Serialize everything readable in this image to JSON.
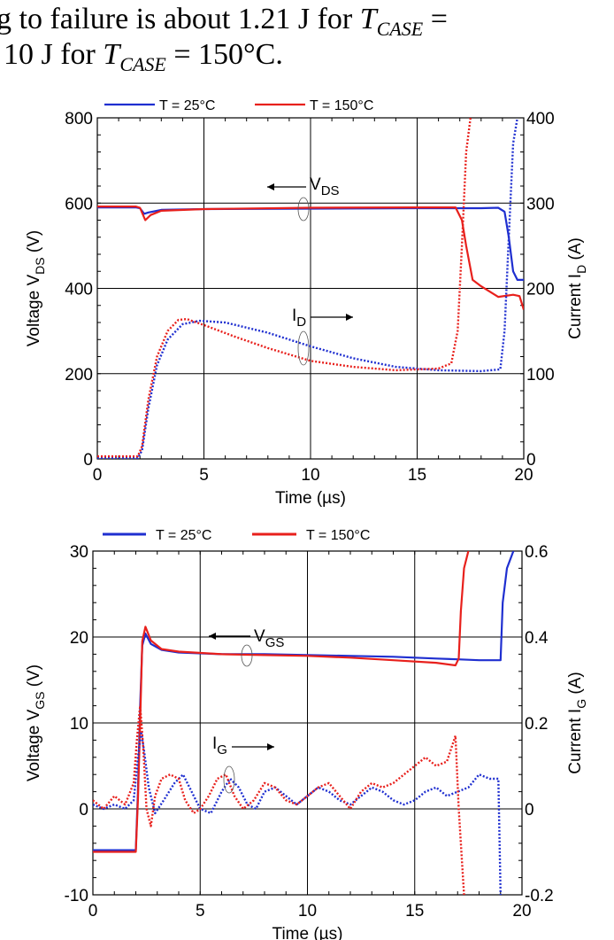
{
  "caption": {
    "line1": "g to failure is about 1.21 J for T_CASE =",
    "line2": "10 J for T_CASE = 150°C."
  },
  "colors": {
    "series_25": "#1f2fd0",
    "series_150": "#e8201c"
  },
  "chart_data": [
    {
      "type": "line",
      "legend": [
        {
          "name": "T = 25°C",
          "color": "#1f2fd0"
        },
        {
          "name": "T = 150°C",
          "color": "#e8201c"
        }
      ],
      "xlabel": "Time  (µs)",
      "xlim": [
        0,
        20
      ],
      "xticks": [
        "0",
        "5",
        "10",
        "15",
        "20"
      ],
      "ylabel_left": "Voltage  V_DS (V)",
      "ylim_left": [
        0,
        800
      ],
      "yticks_left": [
        "0",
        "200",
        "400",
        "600",
        "800"
      ],
      "ylabel_right": "Current  I_D (A)",
      "ylim_right": [
        0,
        400
      ],
      "yticks_right": [
        "0",
        "100",
        "200",
        "300",
        "400"
      ],
      "grid": true,
      "annotations": [
        {
          "text": "V_DS",
          "arrow": "left"
        },
        {
          "text": "I_D",
          "arrow": "right"
        }
      ],
      "series": [
        {
          "name": "V_DS 25°C",
          "axis": "left",
          "style": "solid",
          "color": "#1f2fd0",
          "x": [
            0,
            1.8,
            2.0,
            2.2,
            2.4,
            3.0,
            5.0,
            10.0,
            15.0,
            17.0,
            18.0,
            18.8,
            19.1,
            19.3,
            19.5,
            19.7,
            20.0
          ],
          "y": [
            590,
            590,
            588,
            575,
            578,
            584,
            586,
            587,
            588,
            588,
            588,
            589,
            580,
            520,
            440,
            420,
            420
          ]
        },
        {
          "name": "V_DS 150°C",
          "axis": "left",
          "style": "solid",
          "color": "#e8201c",
          "x": [
            0,
            1.8,
            2.0,
            2.25,
            2.5,
            3.0,
            5.0,
            10.0,
            15.0,
            16.8,
            17.1,
            17.3,
            17.6,
            18.0,
            18.8,
            19.5,
            19.8,
            20.0
          ],
          "y": [
            592,
            592,
            589,
            560,
            572,
            582,
            586,
            589,
            590,
            590,
            560,
            500,
            420,
            405,
            380,
            385,
            382,
            350
          ]
        },
        {
          "name": "I_D 25°C",
          "axis": "right",
          "style": "dotted",
          "color": "#1f2fd0",
          "x": [
            0,
            1.9,
            2.1,
            2.4,
            2.8,
            3.3,
            4.0,
            4.8,
            6.0,
            8.0,
            10.0,
            12.0,
            14.0,
            16.0,
            18.0,
            18.9,
            19.1,
            19.3,
            19.5,
            19.7
          ],
          "y": [
            1,
            1,
            10,
            60,
            110,
            140,
            158,
            162,
            160,
            148,
            132,
            118,
            108,
            104,
            103,
            105,
            150,
            260,
            370,
            400
          ]
        },
        {
          "name": "I_D 150°C",
          "axis": "right",
          "style": "dotted",
          "color": "#e8201c",
          "x": [
            0,
            1.9,
            2.1,
            2.4,
            2.8,
            3.3,
            3.8,
            4.2,
            5.0,
            6.5,
            8.0,
            10.0,
            12.0,
            14.0,
            16.0,
            16.6,
            16.9,
            17.1,
            17.3,
            17.5
          ],
          "y": [
            3,
            3,
            15,
            70,
            120,
            150,
            163,
            164,
            157,
            143,
            130,
            115,
            108,
            104,
            106,
            112,
            150,
            250,
            360,
            400
          ]
        }
      ]
    },
    {
      "type": "line",
      "legend": [
        {
          "name": "T = 25°C",
          "color": "#1f2fd0"
        },
        {
          "name": "T = 150°C",
          "color": "#e8201c"
        }
      ],
      "xlabel": "Time  (µs)",
      "xlim": [
        0,
        20
      ],
      "xticks": [
        "0",
        "5",
        "10",
        "15",
        "20"
      ],
      "ylabel_left": "Voltage  V_GS (V)",
      "ylim_left": [
        -10,
        30
      ],
      "yticks_left": [
        "-10",
        "0",
        "10",
        "20",
        "30"
      ],
      "ylabel_right": "Current  I_G (A)",
      "ylim_right": [
        -0.2,
        0.6
      ],
      "yticks_right": [
        "-0.2",
        "0",
        "0.2",
        "0.4",
        "0.6"
      ],
      "grid": true,
      "annotations": [
        {
          "text": "V_GS",
          "arrow": "left"
        },
        {
          "text": "I_G",
          "arrow": "right"
        }
      ],
      "series": [
        {
          "name": "V_GS 25°C",
          "axis": "left",
          "style": "solid",
          "color": "#1f2fd0",
          "x": [
            0,
            2.0,
            2.1,
            2.2,
            2.3,
            2.45,
            2.7,
            3.2,
            4.0,
            6.0,
            8.0,
            10.0,
            12.0,
            14.0,
            16.0,
            17.0,
            18.0,
            18.9,
            19.0,
            19.1,
            19.3,
            19.6
          ],
          "y": [
            -4.8,
            -4.8,
            2.0,
            12.0,
            19.0,
            20.4,
            19.2,
            18.5,
            18.2,
            18.0,
            18.0,
            17.9,
            17.8,
            17.7,
            17.5,
            17.4,
            17.3,
            17.3,
            17.3,
            24.0,
            28.0,
            30.0
          ]
        },
        {
          "name": "V_GS 150°C",
          "axis": "left",
          "style": "solid",
          "color": "#e8201c",
          "x": [
            0,
            2.0,
            2.1,
            2.2,
            2.3,
            2.45,
            2.7,
            3.2,
            4.0,
            6.0,
            8.0,
            10.0,
            12.0,
            14.0,
            16.0,
            16.9,
            17.05,
            17.15,
            17.3,
            17.5
          ],
          "y": [
            -5.0,
            -5.0,
            1.0,
            10.0,
            19.5,
            21.2,
            19.6,
            18.6,
            18.3,
            18.0,
            17.9,
            17.8,
            17.6,
            17.3,
            17.0,
            16.7,
            17.5,
            23.0,
            28.0,
            30.0
          ]
        },
        {
          "name": "I_G 25°C",
          "axis": "right",
          "style": "dotted",
          "color": "#1f2fd0",
          "x": [
            0,
            0.5,
            1.0,
            1.5,
            1.9,
            2.1,
            2.25,
            2.4,
            2.6,
            2.9,
            3.3,
            3.8,
            4.2,
            4.6,
            5.0,
            5.5,
            6.0,
            6.4,
            6.8,
            7.2,
            7.6,
            8.0,
            8.5,
            9.0,
            9.5,
            10.0,
            10.5,
            11.0,
            11.5,
            12.0,
            12.5,
            13.0,
            13.5,
            14.0,
            14.5,
            15.0,
            15.5,
            16.0,
            16.5,
            17.0,
            17.5,
            18.0,
            18.5,
            18.9,
            19.0
          ],
          "y": [
            0.01,
            0.0,
            0.01,
            0.0,
            0.02,
            0.12,
            0.18,
            0.13,
            0.05,
            -0.01,
            0.02,
            0.06,
            0.08,
            0.04,
            0.0,
            -0.01,
            0.04,
            0.07,
            0.05,
            0.01,
            0.0,
            0.04,
            0.05,
            0.03,
            0.01,
            0.03,
            0.05,
            0.04,
            0.02,
            0.01,
            0.03,
            0.05,
            0.04,
            0.02,
            0.01,
            0.02,
            0.04,
            0.05,
            0.03,
            0.04,
            0.05,
            0.08,
            0.07,
            0.07,
            -0.2
          ]
        },
        {
          "name": "I_G 150°C",
          "axis": "right",
          "style": "dotted",
          "color": "#e8201c",
          "x": [
            0,
            0.5,
            1.0,
            1.5,
            1.9,
            2.05,
            2.2,
            2.35,
            2.5,
            2.7,
            2.9,
            3.2,
            3.6,
            4.0,
            4.3,
            4.7,
            5.0,
            5.4,
            5.8,
            6.2,
            6.6,
            7.0,
            7.5,
            8.0,
            8.5,
            9.0,
            9.5,
            10.0,
            10.5,
            11.0,
            11.5,
            12.0,
            12.5,
            13.0,
            13.5,
            14.0,
            14.5,
            15.0,
            15.5,
            16.0,
            16.5,
            16.9,
            17.05,
            17.15,
            17.3
          ],
          "y": [
            0.02,
            0.0,
            0.03,
            0.01,
            0.06,
            0.16,
            0.24,
            0.14,
            0.0,
            -0.04,
            0.03,
            0.07,
            0.08,
            0.07,
            0.02,
            -0.01,
            0.0,
            0.03,
            0.07,
            0.08,
            0.03,
            0.0,
            0.02,
            0.06,
            0.05,
            0.02,
            0.01,
            0.03,
            0.05,
            0.06,
            0.03,
            0.0,
            0.04,
            0.06,
            0.05,
            0.06,
            0.08,
            0.1,
            0.12,
            0.1,
            0.11,
            0.17,
            0.0,
            -0.08,
            -0.2
          ]
        }
      ]
    }
  ]
}
